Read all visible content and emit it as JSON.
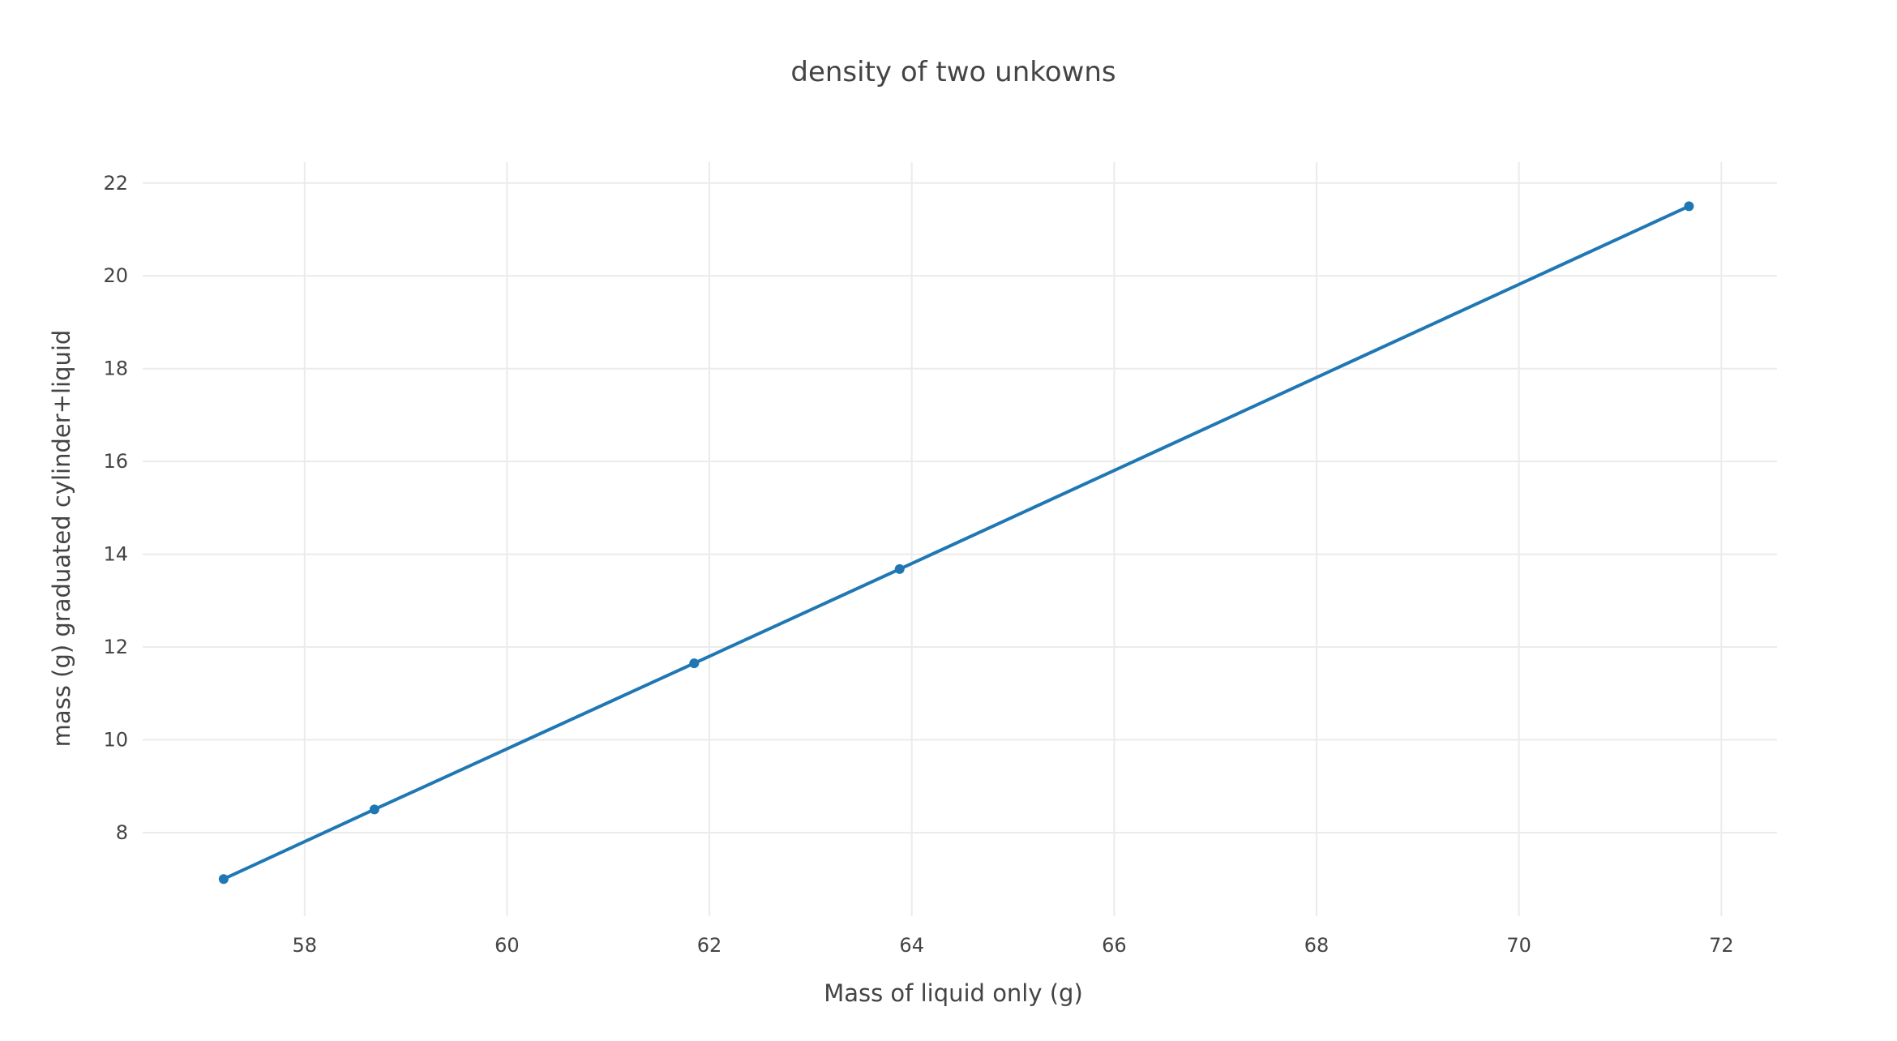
{
  "chart_data": {
    "type": "line",
    "title": "density of two unkowns",
    "xlabel": "Mass of liquid only (g)",
    "ylabel": "mass (g) graduated cylinder+liquid",
    "xlim": [
      56.4,
      72.55
    ],
    "ylim": [
      6.2,
      22.45
    ],
    "x_ticks": [
      58,
      60,
      62,
      64,
      66,
      68,
      70,
      72
    ],
    "y_ticks": [
      8,
      10,
      12,
      14,
      16,
      18,
      20,
      22
    ],
    "grid": true,
    "legend": "none",
    "colors": {
      "series": "#1f77b4",
      "grid": "#ebebeb",
      "text": "#444444"
    },
    "series": [
      {
        "x": [
          57.2,
          58.69,
          61.85,
          63.88,
          71.68
        ],
        "y": [
          7.0,
          8.5,
          11.65,
          13.68,
          21.5
        ]
      }
    ]
  }
}
